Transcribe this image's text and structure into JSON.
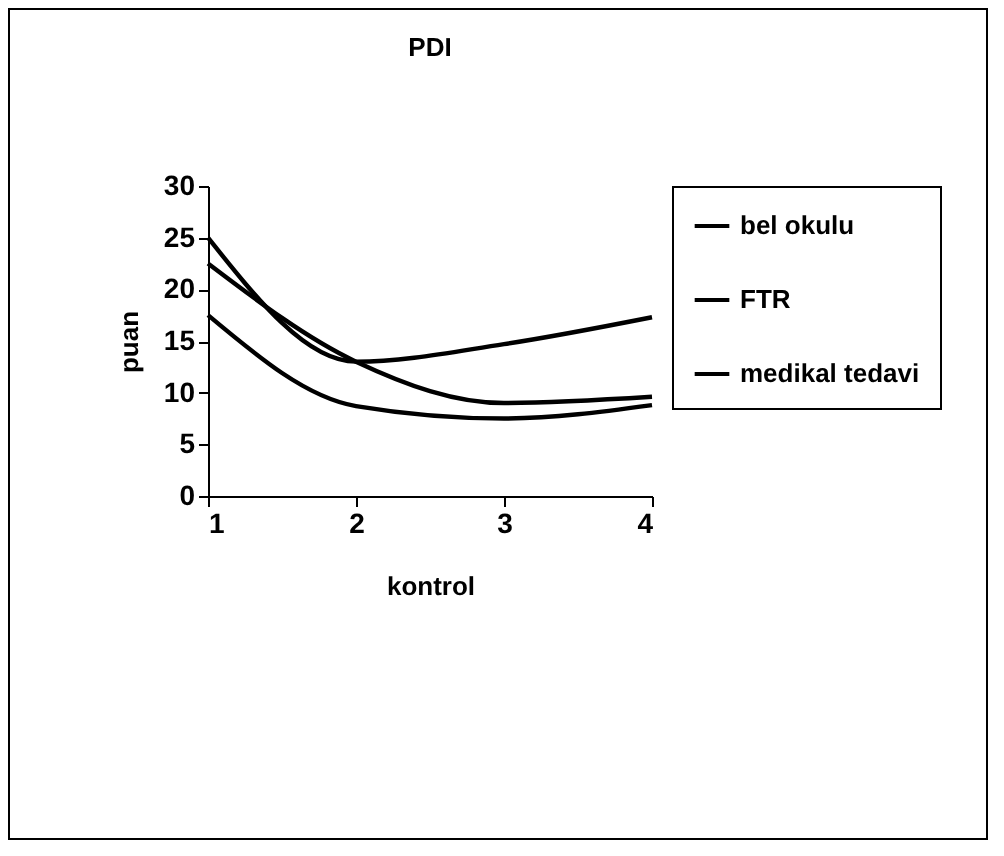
{
  "chart_data": {
    "type": "line",
    "title": "PDI",
    "xlabel": "kontrol",
    "ylabel": "puan",
    "x": [
      1,
      2,
      3,
      4
    ],
    "series": [
      {
        "name": "bel okulu",
        "color": "#000000",
        "values": [
          17.5,
          8.7,
          7.5,
          8.8
        ]
      },
      {
        "name": "FTR",
        "color": "#000000",
        "values": [
          22.5,
          13,
          9,
          9.6
        ]
      },
      {
        "name": "medikal tedavi",
        "color": "#000000",
        "values": [
          25,
          13,
          14.7,
          17.3
        ]
      }
    ],
    "xlim": [
      1,
      4
    ],
    "xticks": [
      1,
      2,
      3,
      4
    ],
    "ylim": [
      0,
      30
    ],
    "yticks": [
      0,
      5,
      10,
      15,
      20,
      25,
      30
    ],
    "grid": false,
    "legend": "right",
    "marker": "none",
    "line_style": "solid"
  }
}
